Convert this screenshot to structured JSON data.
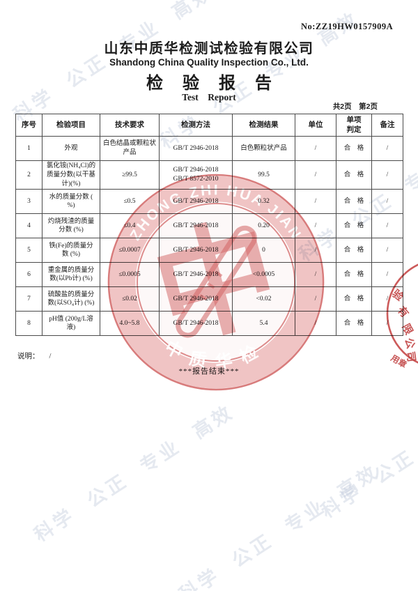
{
  "page": {
    "report_no": "No:ZZ19HW0157909A",
    "company_cn": "山东中质华检测试检验有限公司",
    "company_en": "Shandong China Quality Inspection Co., Ltd.",
    "title_cn": "检验报告",
    "title_en": "Test　Report",
    "pagination": "共2页　第2页"
  },
  "watermark": {
    "text": "科学 公正 专业 高效",
    "color": "rgba(187,196,215,0.38)"
  },
  "table": {
    "columns": [
      "序号",
      "检验项目",
      "技术要求",
      "检测方法",
      "检测结果",
      "单位",
      "单项\n判定",
      "备注"
    ],
    "rows": [
      [
        "1",
        "外观",
        "白色结晶或颗粒状\n产品",
        "GB/T 2946-2018",
        "白色颗粒状产品",
        "/",
        "合　格",
        "/"
      ],
      [
        "2",
        "氯化铵(NH₄Cl)的\n质量分数(以干基\n计)(%)",
        "≥99.5",
        "GB/T 2946-2018\nGB/T 8572-2010",
        "99.5",
        "/",
        "合　格",
        "/"
      ],
      [
        "3",
        "水的质量分数 (\n%)",
        "≤0.5",
        "GB/T 2946-2018",
        "0.32",
        "/",
        "合　格",
        "/"
      ],
      [
        "4",
        "灼烧残渣的质量\n分数 (%)",
        "≤0.4",
        "GB/T 2946-2018",
        "0.20",
        "/",
        "合　格",
        "/"
      ],
      [
        "5",
        "铁(Fe)的质量分\n数 (%)",
        "≤0.0007",
        "GB/T 2946-2018",
        "0",
        "/",
        "合　格",
        "/"
      ],
      [
        "6",
        "重金属的质量分\n数(以Pb计) (%)",
        "≤0.0005",
        "GB/T 2946-2018",
        "<0.0005",
        "/",
        "合　格",
        "/"
      ],
      [
        "7",
        "硫酸盐的质量分\n数(以SO₄计) (%)",
        "≤0.02",
        "GB/T 2946-2018",
        "<0.02",
        "/",
        "合　格",
        "/"
      ],
      [
        "8",
        "pH值 (200g/L溶\n液)",
        "4.0~5.8",
        "GB/T 2946-2018",
        "5.4",
        "/",
        "合　格",
        "/"
      ]
    ]
  },
  "footer": {
    "note_label": "说明：",
    "note_value": "/",
    "end_text": "***报告结束***"
  },
  "seal": {
    "ring_text": "ZHONG ZHI HUA JIAN",
    "bottom_text": "中质华检",
    "center_glyph": "中",
    "color": "#cb4e4e"
  },
  "side_seal": {
    "arc_chars": [
      "验",
      "有",
      "限",
      "公",
      "司"
    ],
    "stamp_text": "用章",
    "color": "#c03434"
  }
}
